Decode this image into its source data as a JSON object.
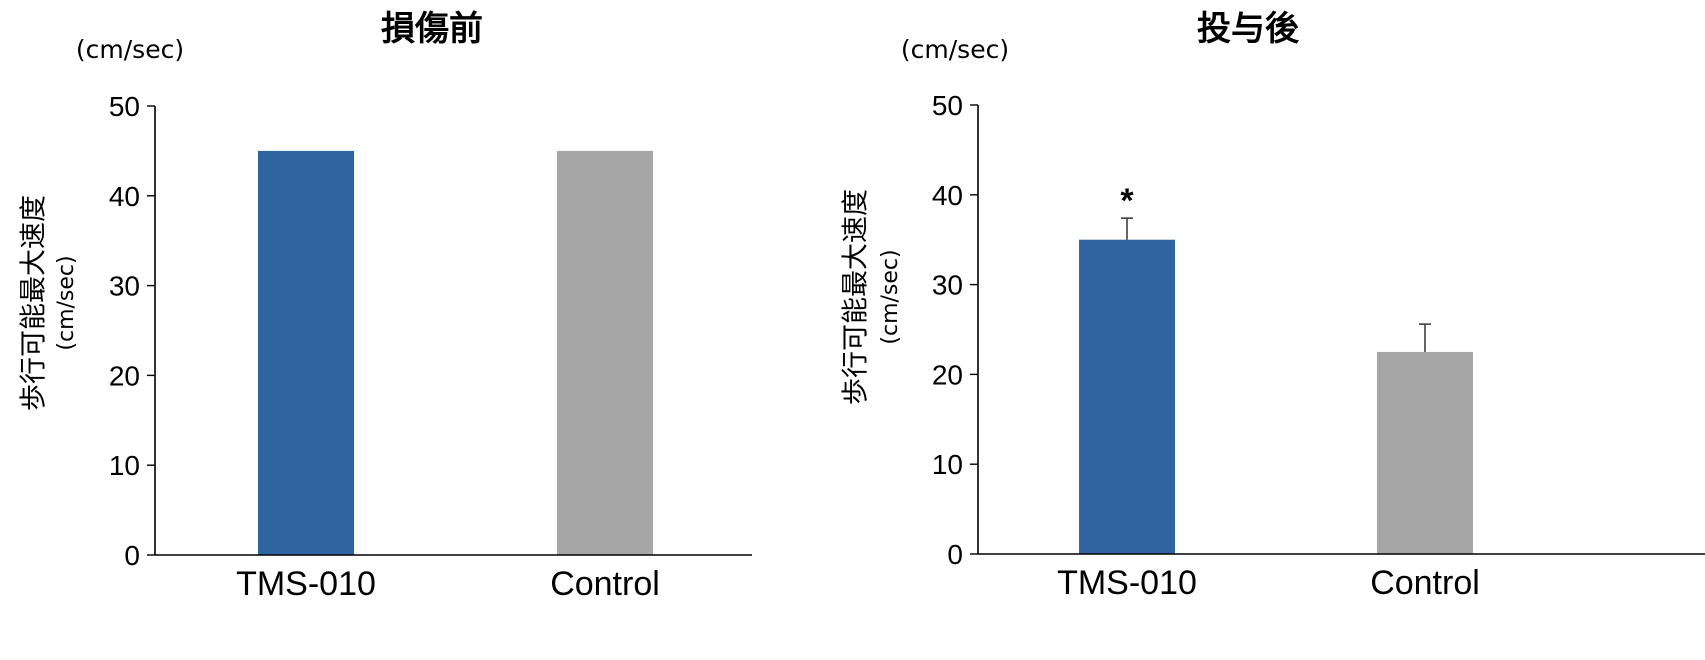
{
  "chart_data": [
    {
      "type": "bar",
      "title": "損傷前",
      "unit_label": "(cm/sec)",
      "ylabel": "歩行可能最大速度",
      "ylabel_unit": "(cm/sec)",
      "categories": [
        "TMS-010",
        "Control"
      ],
      "values": [
        45,
        45
      ],
      "errors": [
        null,
        null
      ],
      "significance": [
        "",
        ""
      ],
      "colors": [
        "#2E64A0",
        "#A6A6A6"
      ],
      "ylim": [
        0,
        50
      ],
      "yticks": [
        0,
        10,
        20,
        30,
        40,
        50
      ],
      "grid": false,
      "legend": "none"
    },
    {
      "type": "bar",
      "title": "投与後",
      "unit_label": "(cm/sec)",
      "ylabel": "歩行可能最大速度",
      "ylabel_unit": "(cm/sec)",
      "categories": [
        "TMS-010",
        "Control"
      ],
      "values": [
        35,
        22.5
      ],
      "errors": [
        2.4,
        3.1
      ],
      "significance": [
        "*",
        ""
      ],
      "colors": [
        "#2E64A0",
        "#A6A6A6"
      ],
      "ylim": [
        0,
        50
      ],
      "yticks": [
        0,
        10,
        20,
        30,
        40,
        50
      ],
      "grid": false,
      "legend": "none"
    }
  ]
}
